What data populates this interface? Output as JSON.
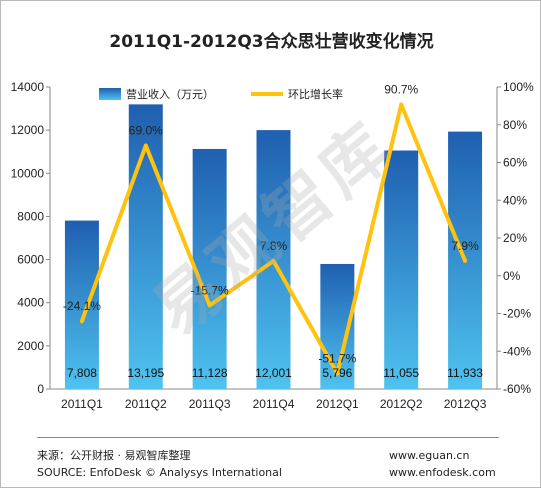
{
  "title": "2011Q1-2012Q3合众思壮营收变化情况",
  "watermark": "易观智库",
  "footer": {
    "source_cn": "来源：公开财报 · 易观智库整理",
    "source_en": "SOURCE: EnfoDesk © Analysys International",
    "url1": "www.eguan.cn",
    "url2": "www.enfodesk.com"
  },
  "colors": {
    "bar_top": "#1f5fb0",
    "bar_bottom": "#4fc3f0",
    "line": "#ffc20e"
  },
  "chart_data": {
    "type": "bar",
    "categories": [
      "2011Q1",
      "2011Q2",
      "2011Q3",
      "2011Q4",
      "2012Q1",
      "2012Q2",
      "2012Q3"
    ],
    "series": [
      {
        "name": "营业收入（万元）",
        "type": "bar",
        "axis": "left",
        "values": [
          7808,
          13195,
          11128,
          12001,
          5796,
          11055,
          11933
        ],
        "labels": [
          "7,808",
          "13,195",
          "11,128",
          "12,001",
          "5,796",
          "11,055",
          "11,933"
        ]
      },
      {
        "name": "环比增长率",
        "type": "line",
        "axis": "right",
        "values": [
          -24.1,
          69.0,
          -15.7,
          7.8,
          -51.7,
          90.7,
          7.9
        ],
        "labels": [
          "-24.1%",
          "69.0%",
          "-15.7%",
          "7.8%",
          "-51.7%",
          "90.7%",
          "7.9%"
        ]
      }
    ],
    "ylim_left": [
      0,
      14000
    ],
    "yticks_left": [
      "0",
      "2000",
      "4000",
      "6000",
      "8000",
      "10000",
      "12000",
      "14000"
    ],
    "ylim_right": [
      -60,
      100
    ],
    "yticks_right": [
      "-60%",
      "-40%",
      "-20%",
      "0%",
      "20%",
      "40%",
      "60%",
      "80%",
      "100%"
    ],
    "legend_position": "top",
    "grid": false
  }
}
